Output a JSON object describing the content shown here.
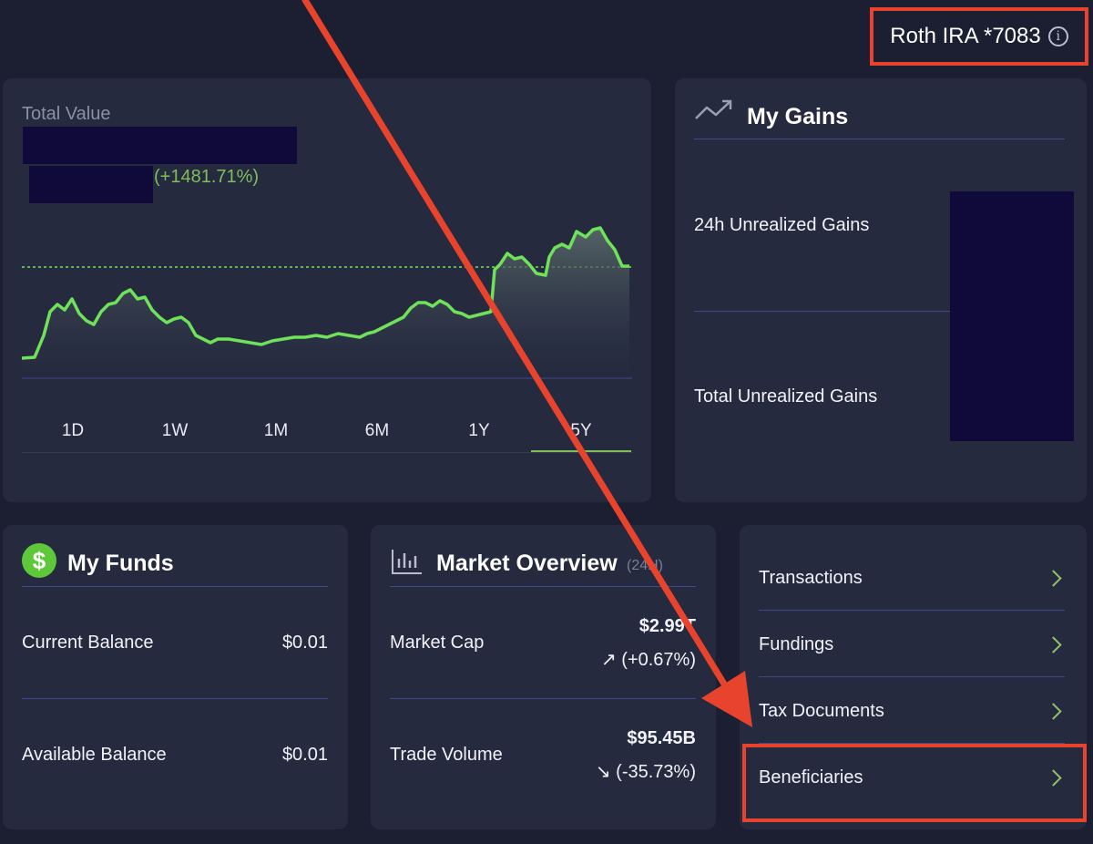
{
  "account": {
    "label": "Roth IRA *7083",
    "info_icon": "info-icon"
  },
  "value_card": {
    "title": "Total Value",
    "change_percent": "(+1481.71%)",
    "ranges": [
      "1D",
      "1W",
      "1M",
      "6M",
      "1Y",
      "5Y"
    ],
    "selected_range": "5Y"
  },
  "gains": {
    "title": "My Gains",
    "icon": "trending-up-icon",
    "rows": [
      {
        "label": "24h Unrealized Gains"
      },
      {
        "label": "Total Unrealized Gains"
      }
    ]
  },
  "funds": {
    "title": "My Funds",
    "icon": "dollar-icon",
    "icon_glyph": "$",
    "rows": [
      {
        "label": "Current Balance",
        "value": "$0.01"
      },
      {
        "label": "Available Balance",
        "value": "$0.01"
      }
    ]
  },
  "market": {
    "title": "Market Overview",
    "subtitle": "(24H)",
    "icon": "bar-chart-icon",
    "rows": [
      {
        "label": "Market Cap",
        "value": "$2.99T",
        "change": "↗ (+0.67%)",
        "direction": "up"
      },
      {
        "label": "Trade Volume",
        "value": "$95.45B",
        "change": "↘ (-35.73%)",
        "direction": "down"
      }
    ]
  },
  "links": [
    {
      "label": "Transactions"
    },
    {
      "label": "Fundings"
    },
    {
      "label": "Tax Documents"
    },
    {
      "label": "Beneficiaries",
      "highlighted": true
    }
  ],
  "colors": {
    "background": "#1b1f31",
    "card": "#252a3f",
    "positive": "#7fbf5a",
    "negative": "#e2533a",
    "line": "#6fe25a",
    "annotation": "#e8432c",
    "redaction": "#100a3a"
  }
}
